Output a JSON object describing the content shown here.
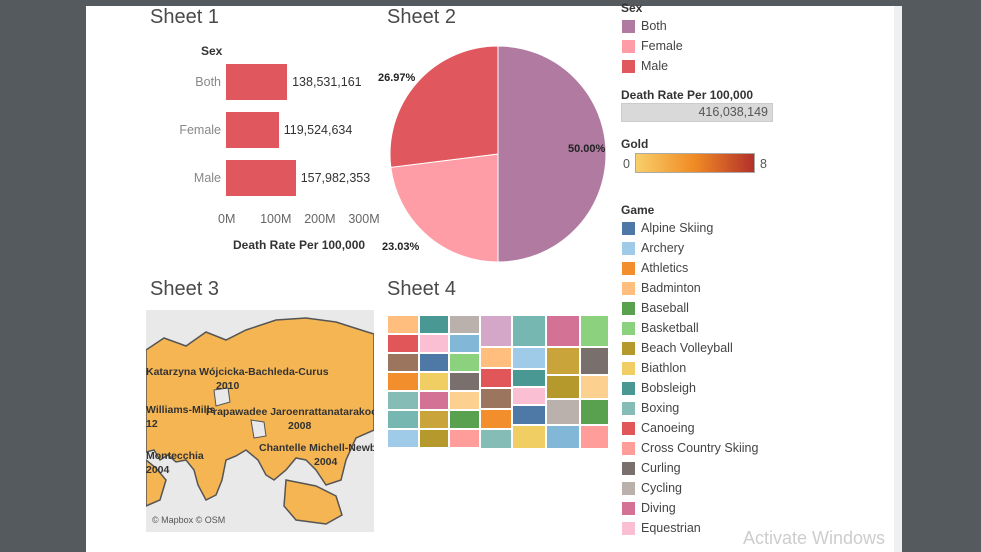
{
  "sheets": {
    "sheet1_title": "Sheet 1",
    "sheet2_title": "Sheet 2",
    "sheet3_title": "Sheet 3",
    "sheet4_title": "Sheet 4"
  },
  "chart_data": [
    {
      "type": "bar",
      "orientation": "horizontal",
      "title": "Sheet 1",
      "row_header": "Sex",
      "categories": [
        "Both",
        "Female",
        "Male"
      ],
      "values": [
        138531161,
        119524634,
        157982353
      ],
      "value_labels": [
        "138,531,161",
        "119,524,634",
        "157,982,353"
      ],
      "xlabel": "Death Rate Per 100,000",
      "x_ticks": [
        "0M",
        "100M",
        "200M",
        "300M"
      ],
      "xlim": [
        0,
        340000000
      ],
      "color": "#e0575d"
    },
    {
      "type": "pie",
      "title": "Sheet 2",
      "slices": [
        {
          "label": "Both",
          "value": 50.0,
          "display": "50.00%",
          "color": "#b07aa1"
        },
        {
          "label": "Female",
          "value": 23.03,
          "display": "23.03%",
          "color": "#ff9da7"
        },
        {
          "label": "Male",
          "value": 26.97,
          "display": "26.97%",
          "color": "#e0575d"
        }
      ]
    }
  ],
  "map": {
    "title": "Sheet 3",
    "attribution": "© Mapbox © OSM",
    "labels": [
      {
        "text": "Katarzyna Wójcicka-Bachleda-Curus"
      },
      {
        "text": "2010"
      },
      {
        "text": "Williams-Mills"
      },
      {
        "text": "Prapawadee Jaroenrattanatarakoon"
      },
      {
        "text": "12"
      },
      {
        "text": "2008"
      },
      {
        "text": "Montecchia"
      },
      {
        "text": "2004"
      },
      {
        "text": "Chantelle Michell-Newbery"
      },
      {
        "text": "2004"
      }
    ]
  },
  "treemap": {
    "title": "Sheet 4"
  },
  "legends": {
    "sex": {
      "title": "Sex",
      "items": [
        {
          "label": "Both",
          "color": "#b07aa1"
        },
        {
          "label": "Female",
          "color": "#ff9da7"
        },
        {
          "label": "Male",
          "color": "#e0575d"
        }
      ]
    },
    "death_rate": {
      "title": "Death Rate Per 100,000",
      "value": "416,038,149"
    },
    "gold": {
      "title": "Gold",
      "min": "0",
      "max": "8",
      "color_start": "#f8cf6a",
      "color_mid": "#f08a24",
      "color_end": "#b3302b"
    },
    "game": {
      "title": "Game",
      "items": [
        {
          "label": "Alpine Skiing",
          "color": "#4e79a7"
        },
        {
          "label": "Archery",
          "color": "#a0cbe8"
        },
        {
          "label": "Athletics",
          "color": "#f28e2b"
        },
        {
          "label": "Badminton",
          "color": "#ffbe7d"
        },
        {
          "label": "Baseball",
          "color": "#59a14f"
        },
        {
          "label": "Basketball",
          "color": "#8cd17d"
        },
        {
          "label": "Beach Volleyball",
          "color": "#b6992d"
        },
        {
          "label": "Biathlon",
          "color": "#f1ce63"
        },
        {
          "label": "Bobsleigh",
          "color": "#499894"
        },
        {
          "label": "Boxing",
          "color": "#86bcb6"
        },
        {
          "label": "Canoeing",
          "color": "#e15759"
        },
        {
          "label": "Cross Country Skiing",
          "color": "#ff9d9a"
        },
        {
          "label": "Curling",
          "color": "#79706e"
        },
        {
          "label": "Cycling",
          "color": "#bab0ac"
        },
        {
          "label": "Diving",
          "color": "#d37295"
        },
        {
          "label": "Equestrian",
          "color": "#fabfd2"
        }
      ]
    }
  },
  "watermark": "Activate Windows"
}
